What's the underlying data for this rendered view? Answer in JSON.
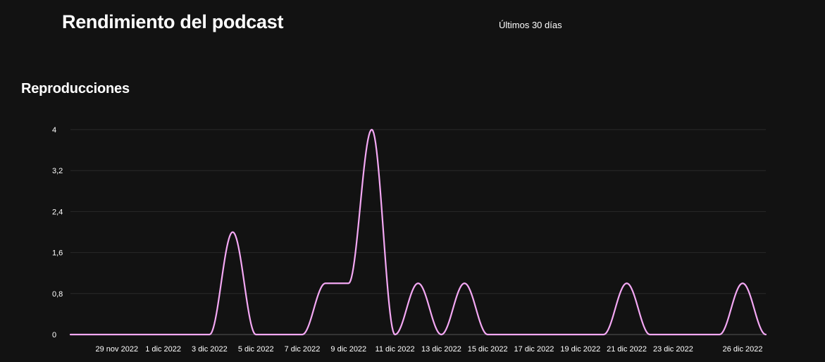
{
  "header": {
    "title": "Rendimiento del podcast",
    "range": "Últimos 30 días"
  },
  "chart_data": {
    "type": "line",
    "title": "Reproducciones",
    "xlabel": "",
    "ylabel": "",
    "x": [
      "27 nov 2022",
      "28 nov 2022",
      "29 nov 2022",
      "30 nov 2022",
      "1 dic 2022",
      "2 dic 2022",
      "3 dic 2022",
      "4 dic 2022",
      "5 dic 2022",
      "6 dic 2022",
      "7 dic 2022",
      "8 dic 2022",
      "9 dic 2022",
      "10 dic 2022",
      "11 dic 2022",
      "12 dic 2022",
      "13 dic 2022",
      "14 dic 2022",
      "15 dic 2022",
      "16 dic 2022",
      "17 dic 2022",
      "18 dic 2022",
      "19 dic 2022",
      "20 dic 2022",
      "21 dic 2022",
      "22 dic 2022",
      "23 dic 2022",
      "24 dic 2022",
      "25 dic 2022",
      "26 dic 2022",
      "27 dic 2022"
    ],
    "series": [
      {
        "values": [
          0,
          0,
          0,
          0,
          0,
          0,
          0,
          2,
          0,
          0,
          0,
          1,
          1,
          4,
          0,
          1,
          0,
          1,
          0,
          0,
          0,
          0,
          0,
          0,
          1,
          0,
          0,
          0,
          0,
          1,
          0
        ]
      }
    ],
    "x_tick_labels": [
      "29 nov 2022",
      "1 dic 2022",
      "3 dic 2022",
      "5 dic 2022",
      "7 dic 2022",
      "9 dic 2022",
      "11 dic 2022",
      "13 dic 2022",
      "15 dic 2022",
      "17 dic 2022",
      "19 dic 2022",
      "21 dic 2022",
      "23 dic 2022",
      "26 dic 2022"
    ],
    "y_ticks": [
      0,
      0.8,
      1.6,
      2.4,
      3.2,
      4
    ],
    "y_tick_labels": [
      "0",
      "0,8",
      "1,6",
      "2,4",
      "3,2",
      "4"
    ],
    "ylim": [
      0,
      4
    ],
    "grid": true,
    "line_color": "#f4a8f4",
    "grid_color": "#2a2a2a",
    "axis_color": "#555555"
  }
}
